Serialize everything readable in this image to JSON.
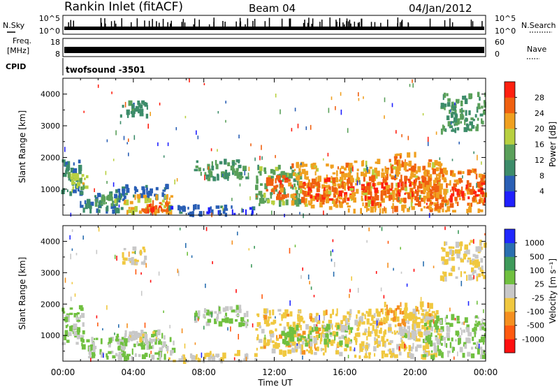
{
  "header": {
    "station": "Rankin Inlet (fitACF)",
    "beam": "Beam 04",
    "date": "04/Jan/2012"
  },
  "status_panels": {
    "nsky_label": "N.Sky",
    "nsky_ticks": [
      "10^5",
      "10^0"
    ],
    "nsearch_label": "N.Search",
    "nsearch_ticks": [
      "10^5",
      "10^0"
    ],
    "freq_label_1": "Freq.",
    "freq_label_2": "[MHz]",
    "freq_ticks": [
      "18",
      "8"
    ],
    "nave_label": "Nave",
    "nave_ticks": [
      "60",
      "0"
    ],
    "cpid_label": "CPID",
    "cpid_value": "twofsound -3501"
  },
  "chart_data": [
    {
      "type": "heatmap",
      "name": "power-panel",
      "ylabel": "Slant Range [km]",
      "ylim": [
        180,
        4500
      ],
      "yticks": [
        "1000",
        "2000",
        "3000",
        "4000"
      ],
      "xlim": [
        0,
        24
      ],
      "colorbar_label": "Power [dB]",
      "colorbar_ticks": [
        "28",
        "24",
        "20",
        "16",
        "12",
        "8",
        "4"
      ],
      "colorbar_range": [
        0,
        32
      ],
      "colors": [
        "#2020ff",
        "#2a5fb5",
        "#3d8c6a",
        "#5aa05a",
        "#b8d040",
        "#f0a020",
        "#f06010",
        "#ff2010"
      ],
      "regions": [
        {
          "t0": 0.0,
          "t1": 1.0,
          "r0": 800,
          "r1": 1900,
          "v": 9
        },
        {
          "t0": 0.3,
          "t1": 1.4,
          "r0": 1000,
          "r1": 1500,
          "v": 18
        },
        {
          "t0": 1.0,
          "t1": 3.5,
          "r0": 250,
          "r1": 900,
          "v": 8
        },
        {
          "t0": 1.8,
          "t1": 3.2,
          "r0": 500,
          "r1": 800,
          "v": 14
        },
        {
          "t0": 3.0,
          "t1": 6.0,
          "r0": 700,
          "r1": 1100,
          "v": 7
        },
        {
          "t0": 3.5,
          "t1": 6.3,
          "r0": 250,
          "r1": 800,
          "v": 20
        },
        {
          "t0": 4.5,
          "t1": 6.0,
          "r0": 300,
          "r1": 600,
          "v": 26
        },
        {
          "t0": 3.3,
          "t1": 4.8,
          "r0": 3300,
          "r1": 3800,
          "v": 10
        },
        {
          "t0": 6.0,
          "t1": 11.0,
          "r0": 180,
          "r1": 450,
          "v": 6
        },
        {
          "t0": 7.5,
          "t1": 10.5,
          "r0": 1300,
          "r1": 1900,
          "v": 12
        },
        {
          "t0": 11.0,
          "t1": 13.5,
          "r0": 500,
          "r1": 1700,
          "v": 14
        },
        {
          "t0": 11.5,
          "t1": 13.0,
          "r0": 700,
          "r1": 1400,
          "v": 26
        },
        {
          "t0": 13.0,
          "t1": 16.0,
          "r0": 400,
          "r1": 1800,
          "v": 22
        },
        {
          "t0": 13.5,
          "t1": 16.5,
          "r0": 600,
          "r1": 1300,
          "v": 27
        },
        {
          "t0": 16.0,
          "t1": 21.5,
          "r0": 300,
          "r1": 1900,
          "v": 22
        },
        {
          "t0": 17.0,
          "t1": 21.0,
          "r0": 500,
          "r1": 1400,
          "v": 27
        },
        {
          "t0": 18.5,
          "t1": 20.0,
          "r0": 1500,
          "r1": 2100,
          "v": 24
        },
        {
          "t0": 20.5,
          "t1": 24.0,
          "r0": 300,
          "r1": 1600,
          "v": 24
        },
        {
          "t0": 21.5,
          "t1": 24.0,
          "r0": 2800,
          "r1": 4000,
          "v": 12
        },
        {
          "t0": 22.0,
          "t1": 24.0,
          "r0": 600,
          "r1": 1200,
          "v": 28
        }
      ]
    },
    {
      "type": "heatmap",
      "name": "velocity-panel",
      "ylabel": "Slant Range [km]",
      "ylim": [
        180,
        4500
      ],
      "yticks": [
        "1000",
        "2000",
        "3000",
        "4000"
      ],
      "xlim": [
        0,
        24
      ],
      "xticks": [
        "00:00",
        "04:00",
        "08:00",
        "12:00",
        "16:00",
        "20:00",
        "00:00"
      ],
      "xlabel": "Time UT",
      "colorbar_label": "Velocity [m s⁻¹]",
      "colorbar_ticks": [
        "1000",
        "500",
        "100",
        "25",
        "-25",
        "-100",
        "-500",
        "-1000"
      ],
      "colorbar_range": [
        -1200,
        1200
      ],
      "colors": [
        "#ff1010",
        "#ff5a10",
        "#f59020",
        "#f0c840",
        "#c8c8c8",
        "#70c040",
        "#3e9a5a",
        "#2a6fb0",
        "#2028ff"
      ],
      "regions": [
        {
          "t0": 0.0,
          "t1": 1.2,
          "r0": 700,
          "r1": 1900,
          "v": 120
        },
        {
          "t0": 1.0,
          "t1": 3.5,
          "r0": 250,
          "r1": 900,
          "v": 150
        },
        {
          "t0": 3.0,
          "t1": 6.3,
          "r0": 250,
          "r1": 1100,
          "v": 90
        },
        {
          "t0": 3.5,
          "t1": 5.5,
          "r0": 800,
          "r1": 1100,
          "v": 0
        },
        {
          "t0": 3.3,
          "t1": 4.8,
          "r0": 3300,
          "r1": 3800,
          "v": -200
        },
        {
          "t0": 6.0,
          "t1": 11.0,
          "r0": 180,
          "r1": 450,
          "v": -120
        },
        {
          "t0": 7.5,
          "t1": 10.5,
          "r0": 1300,
          "r1": 1900,
          "v": 140
        },
        {
          "t0": 11.0,
          "t1": 16.0,
          "r0": 400,
          "r1": 1800,
          "v": -250
        },
        {
          "t0": 12.5,
          "t1": 16.5,
          "r0": 700,
          "r1": 1300,
          "v": 200
        },
        {
          "t0": 16.0,
          "t1": 21.5,
          "r0": 300,
          "r1": 1800,
          "v": -200
        },
        {
          "t0": 18.0,
          "t1": 21.0,
          "r0": 1300,
          "r1": 2000,
          "v": -350
        },
        {
          "t0": 19.0,
          "t1": 20.0,
          "r0": 900,
          "r1": 1300,
          "v": 0
        },
        {
          "t0": 20.5,
          "t1": 24.0,
          "r0": 300,
          "r1": 1600,
          "v": 180
        },
        {
          "t0": 21.5,
          "t1": 24.0,
          "r0": 2800,
          "r1": 4000,
          "v": -200
        }
      ]
    }
  ]
}
